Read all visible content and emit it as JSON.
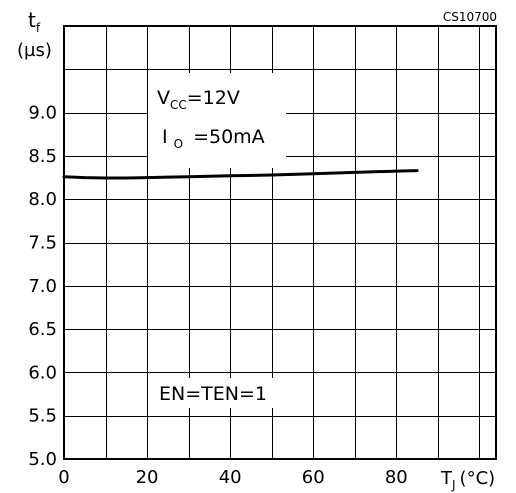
{
  "chart_data": {
    "type": "line",
    "code": "CS10700",
    "ylabel_main": "t",
    "ylabel_sub": "f",
    "yunit": "(µs)",
    "xlabel_main": "T",
    "xlabel_sub": "J",
    "xunit": "(°C)",
    "xlim": [
      0,
      104
    ],
    "ylim": [
      5.0,
      10.0
    ],
    "x_ticks": [
      "0",
      "20",
      "40",
      "60",
      "80"
    ],
    "x_tick_values": [
      0,
      20,
      40,
      60,
      80
    ],
    "y_ticks": [
      "5.0",
      "5.5",
      "6.0",
      "6.5",
      "7.0",
      "7.5",
      "8.0",
      "8.5",
      "9.0"
    ],
    "y_tick_values": [
      5.0,
      5.5,
      6.0,
      6.5,
      7.0,
      7.5,
      8.0,
      8.5,
      9.0
    ],
    "grid": true,
    "grid_x_step": 10,
    "grid_y_step": 0.5,
    "annotations": {
      "vcc_main": "V",
      "vcc_sub": "CC",
      "vcc_val": "=12V",
      "io_main": "I",
      "io_sub": "O",
      "io_val": "=50mA",
      "en": "EN=TEN=1"
    },
    "series": [
      {
        "x": [
          0,
          5,
          10,
          15,
          20,
          25,
          30,
          40,
          50,
          60,
          70,
          80,
          85
        ],
        "y": [
          8.26,
          8.25,
          8.245,
          8.245,
          8.25,
          8.255,
          8.26,
          8.27,
          8.28,
          8.295,
          8.31,
          8.325,
          8.33
        ]
      }
    ]
  }
}
